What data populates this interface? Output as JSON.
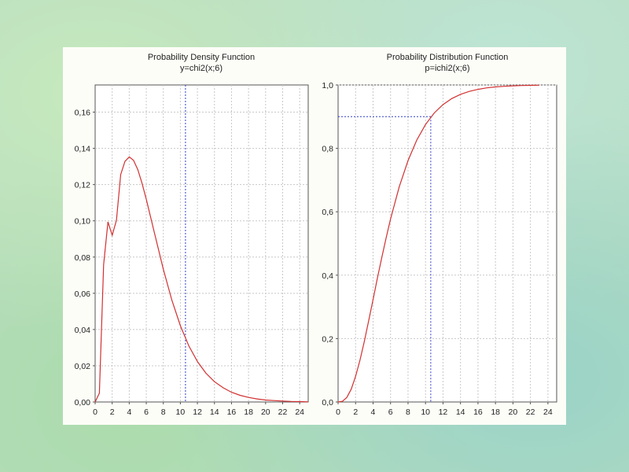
{
  "colors": {
    "curve": "#d23030",
    "marker": "#3040c8"
  },
  "chart_data": [
    {
      "type": "line",
      "title": "Probability Density Function",
      "subtitle": "y=chi2(x;6)",
      "xlim": [
        0,
        25
      ],
      "ylim": [
        0,
        0.175
      ],
      "xticks": [
        0,
        2,
        4,
        6,
        8,
        10,
        12,
        14,
        16,
        18,
        20,
        22,
        24
      ],
      "yticks": [
        0,
        0.02,
        0.04,
        0.06,
        0.08,
        0.1,
        0.12,
        0.14,
        0.16
      ],
      "xtick_labels": [
        "0",
        "2",
        "4",
        "6",
        "8",
        "10",
        "12",
        "14",
        "16",
        "18",
        "20",
        "22",
        "24"
      ],
      "ytick_labels": [
        "0,00",
        "0,02",
        "0,04",
        "0,06",
        "0,08",
        "0,10",
        "0,12",
        "0,14",
        "0,16"
      ],
      "grid": true,
      "series": [
        {
          "x": [
            0,
            0.5,
            1,
            1.5,
            2,
            2.5,
            3,
            3.5,
            4,
            4.5,
            5,
            5.5,
            6,
            7,
            8,
            9,
            10,
            11,
            12,
            13,
            14,
            15,
            16,
            17,
            18,
            19,
            20,
            21,
            22,
            23,
            24,
            25
          ],
          "y": [
            0,
            0.0049,
            0.0758,
            0.0994,
            0.092,
            0.1003,
            0.1255,
            0.1328,
            0.1353,
            0.1334,
            0.1283,
            0.1208,
            0.112,
            0.0925,
            0.0733,
            0.0562,
            0.0421,
            0.0309,
            0.0223,
            0.0159,
            0.0112,
            0.0079,
            0.0054,
            0.0037,
            0.0025,
            0.0017,
            0.0011,
            0.0008,
            0.0005,
            0.0003,
            0.0002,
            0.0001
          ]
        }
      ],
      "markers": {
        "x": 10.6,
        "y": 0.0335
      }
    },
    {
      "type": "line",
      "title": "Probability Distribution Function",
      "subtitle": "p=ichi2(x;6)",
      "xlim": [
        0,
        25
      ],
      "ylim": [
        0,
        1.0
      ],
      "xticks": [
        0,
        2,
        4,
        6,
        8,
        10,
        12,
        14,
        16,
        18,
        20,
        22,
        24
      ],
      "yticks": [
        0,
        0.2,
        0.4,
        0.6,
        0.8,
        1.0
      ],
      "xtick_labels": [
        "0",
        "2",
        "4",
        "6",
        "8",
        "10",
        "12",
        "14",
        "16",
        "18",
        "20",
        "22",
        "24"
      ],
      "ytick_labels": [
        "0,0",
        "0,2",
        "0,4",
        "0,6",
        "0,8",
        "1,0"
      ],
      "grid": true,
      "series": [
        {
          "x": [
            0,
            0.5,
            1,
            1.5,
            2,
            2.5,
            3,
            3.5,
            4,
            4.5,
            5,
            5.5,
            6,
            7,
            8,
            9,
            10,
            11,
            12,
            13,
            14,
            15,
            16,
            17,
            18,
            19,
            20,
            21,
            22,
            23
          ],
          "y": [
            0,
            0.0022,
            0.0144,
            0.0405,
            0.0803,
            0.1315,
            0.1912,
            0.256,
            0.3233,
            0.3907,
            0.4562,
            0.5185,
            0.5768,
            0.6792,
            0.7619,
            0.8264,
            0.8753,
            0.9116,
            0.938,
            0.957,
            0.9704,
            0.9797,
            0.9862,
            0.9907,
            0.9938,
            0.9958,
            0.9972,
            0.9982,
            0.9988,
            0.9992
          ]
        }
      ],
      "markers": {
        "x": 10.6,
        "y": 0.9
      }
    }
  ]
}
